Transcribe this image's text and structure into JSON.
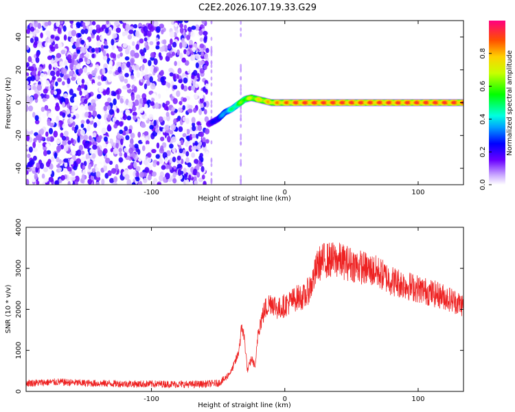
{
  "title": "C2E2.2026.107.19.33.G29",
  "chart_data": [
    {
      "type": "heatmap",
      "title": "C2E2.2026.107.19.33.G29",
      "xlabel": "Height of straight line (km)",
      "ylabel": "Frequency (Hz)",
      "xlim": [
        -194,
        134
      ],
      "ylim": [
        -50,
        50
      ],
      "xticks": [
        -100,
        0,
        100
      ],
      "yticks": [
        -40,
        -20,
        0,
        20,
        40
      ],
      "description_series": [
        {
          "name": "noise_region",
          "x_range": [
            -194,
            -58
          ],
          "y_range": [
            -50,
            50
          ],
          "amplitude_range": [
            0.0,
            0.25
          ]
        },
        {
          "name": "signal_track",
          "x": [
            -57,
            -50,
            -45,
            -40,
            -35,
            -30,
            -25,
            -20,
            -10,
            0,
            10,
            20,
            50,
            100,
            134
          ],
          "y": [
            -13,
            -10,
            -6,
            -4,
            -1,
            2,
            3,
            2,
            0,
            0,
            0,
            0,
            0,
            0,
            0
          ],
          "amplitude": [
            0.2,
            0.3,
            0.4,
            0.5,
            0.6,
            0.7,
            0.75,
            0.8,
            0.85,
            0.9,
            0.95,
            0.95,
            0.95,
            0.95,
            0.95
          ]
        }
      ],
      "colorbar": {
        "label": "Normalized spectral amplitude",
        "range": [
          0.0,
          1.0
        ],
        "ticks": [
          0.0,
          0.2,
          0.4,
          0.6,
          0.8
        ]
      }
    },
    {
      "type": "line",
      "xlabel": "Height of straight line (km)",
      "ylabel": "SNR (10 * v/v)",
      "xlim": [
        -194,
        134
      ],
      "ylim": [
        0,
        4000
      ],
      "xticks": [
        -100,
        0,
        100
      ],
      "yticks": [
        0,
        1000,
        2000,
        3000,
        4000
      ],
      "series": [
        {
          "name": "SNR",
          "color": "#ee2222",
          "x": [
            -194,
            -170,
            -150,
            -130,
            -110,
            -90,
            -70,
            -60,
            -50,
            -45,
            -40,
            -35,
            -32,
            -30,
            -28,
            -25,
            -22,
            -20,
            -15,
            -10,
            -5,
            0,
            5,
            10,
            15,
            20,
            25,
            30,
            40,
            50,
            60,
            70,
            80,
            90,
            100,
            110,
            120,
            134
          ],
          "y": [
            200,
            230,
            200,
            190,
            180,
            180,
            170,
            180,
            200,
            300,
            500,
            900,
            1600,
            1200,
            500,
            800,
            600,
            1500,
            2000,
            2200,
            2000,
            2100,
            2200,
            2300,
            2300,
            2600,
            3100,
            3200,
            3200,
            3100,
            3000,
            2900,
            2700,
            2600,
            2500,
            2400,
            2300,
            2100
          ]
        }
      ]
    }
  ]
}
